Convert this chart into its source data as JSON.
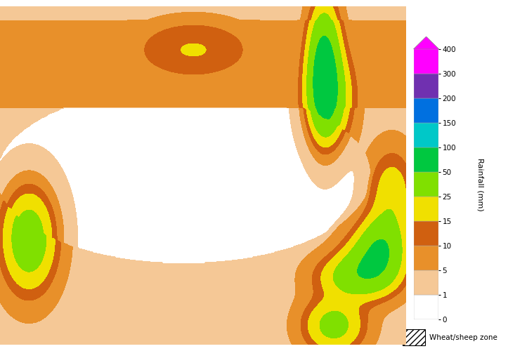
{
  "colorbar_label": "Rainfall (mm)",
  "colorbar_levels": [
    0,
    1,
    5,
    10,
    15,
    25,
    50,
    100,
    150,
    200,
    300,
    400
  ],
  "colorbar_colors": [
    "#ffffff",
    "#f5c896",
    "#e8902a",
    "#d06010",
    "#f0e000",
    "#80e000",
    "#00c840",
    "#00c8c8",
    "#0070e0",
    "#7030b0",
    "#ff00ff"
  ],
  "tick_labels": [
    "0",
    "1",
    "5",
    "10",
    "15",
    "25",
    "50",
    "100",
    "150",
    "200",
    "300",
    "400"
  ],
  "wheat_sheep_label": "Wheat/sheep zone",
  "background_color": "#ffffff",
  "fig_width": 7.23,
  "fig_height": 5.0,
  "dpi": 100,
  "map_extent": [
    112.0,
    154.0,
    -44.5,
    -9.5
  ]
}
